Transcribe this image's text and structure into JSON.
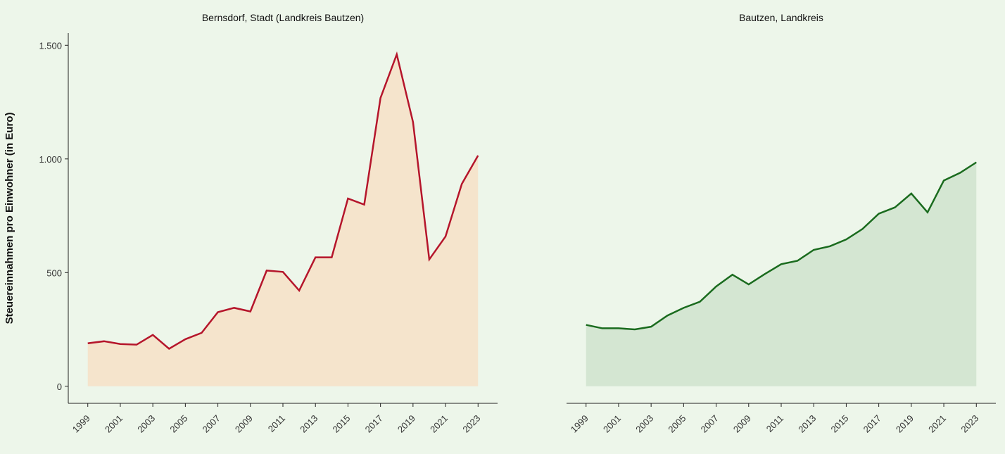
{
  "chart_data": [
    {
      "type": "area",
      "title": "Bernsdorf, Stadt (Landkreis Bautzen)",
      "ylabel": "Steuereinnahmen pro Einwohner (in Euro)",
      "x": [
        1999,
        2000,
        2001,
        2002,
        2003,
        2004,
        2005,
        2006,
        2007,
        2008,
        2009,
        2010,
        2011,
        2012,
        2013,
        2014,
        2015,
        2016,
        2017,
        2018,
        2019,
        2020,
        2021,
        2022,
        2023
      ],
      "series": [
        {
          "color": "#b5152b",
          "fill": "#f5e4cc",
          "values": [
            189,
            198,
            186,
            183,
            226,
            165,
            207,
            235,
            326,
            345,
            329,
            509,
            503,
            421,
            567,
            567,
            826,
            799,
            1268,
            1460,
            1162,
            558,
            659,
            890,
            1015
          ]
        }
      ],
      "xlim": [
        1997.8,
        2024.2
      ],
      "xticks": [
        1999,
        2001,
        2003,
        2005,
        2007,
        2009,
        2011,
        2013,
        2015,
        2017,
        2019,
        2021,
        2023
      ],
      "ylim": [
        -75,
        1600
      ],
      "yticks": [
        0,
        500,
        {
          "value": 1000,
          "label": "1.000"
        },
        {
          "value": 1500,
          "label": "1.500"
        }
      ]
    },
    {
      "type": "area",
      "title": "Bautzen, Landkreis",
      "x": [
        1999,
        2000,
        2001,
        2002,
        2003,
        2004,
        2005,
        2006,
        2007,
        2008,
        2009,
        2010,
        2011,
        2012,
        2013,
        2014,
        2015,
        2016,
        2017,
        2018,
        2019,
        2020,
        2021,
        2022,
        2023
      ],
      "series": [
        {
          "color": "#1a6b1e",
          "fill": "#d4e6d2",
          "values": [
            270,
            255,
            255,
            250,
            262,
            311,
            345,
            372,
            439,
            491,
            448,
            494,
            537,
            552,
            600,
            616,
            646,
            692,
            759,
            787,
            848,
            765,
            905,
            939,
            985
          ]
        }
      ],
      "xlim": [
        1997.8,
        2024.2
      ],
      "xticks": [
        1999,
        2001,
        2003,
        2005,
        2007,
        2009,
        2011,
        2013,
        2015,
        2017,
        2019,
        2021,
        2023
      ],
      "ylim": [
        -75,
        1600
      ]
    }
  ]
}
